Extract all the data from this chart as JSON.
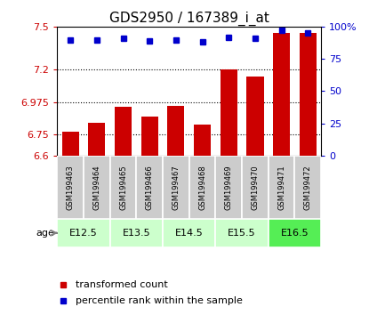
{
  "title": "GDS2950 / 167389_i_at",
  "samples": [
    "GSM199463",
    "GSM199464",
    "GSM199465",
    "GSM199466",
    "GSM199467",
    "GSM199468",
    "GSM199469",
    "GSM199470",
    "GSM199471",
    "GSM199472"
  ],
  "bar_values": [
    6.77,
    6.83,
    6.94,
    6.87,
    6.945,
    6.82,
    7.2,
    7.15,
    7.46,
    7.46
  ],
  "dot_values": [
    90,
    90,
    91,
    89,
    90,
    88,
    92,
    91,
    97,
    95
  ],
  "bar_base": 6.6,
  "ylim_left": [
    6.6,
    7.5
  ],
  "ylim_right": [
    0,
    100
  ],
  "yticks_left": [
    6.6,
    6.75,
    6.975,
    7.2,
    7.5
  ],
  "ytick_labels_left": [
    "6.6",
    "6.75",
    "6.975",
    "7.2",
    "7.5"
  ],
  "yticks_right": [
    0,
    25,
    50,
    75,
    100
  ],
  "ytick_labels_right": [
    "0",
    "25",
    "50",
    "75",
    "100%"
  ],
  "hlines": [
    6.75,
    6.975,
    7.2
  ],
  "bar_color": "#cc0000",
  "dot_color": "#0000cc",
  "age_groups": [
    {
      "label": "E12.5",
      "start": 0,
      "end": 1,
      "color": "#ccffcc"
    },
    {
      "label": "E13.5",
      "start": 2,
      "end": 3,
      "color": "#ccffcc"
    },
    {
      "label": "E14.5",
      "start": 4,
      "end": 5,
      "color": "#ccffcc"
    },
    {
      "label": "E15.5",
      "start": 6,
      "end": 7,
      "color": "#ccffcc"
    },
    {
      "label": "E16.5",
      "start": 8,
      "end": 9,
      "color": "#55ee55"
    }
  ],
  "legend_bar_label": "transformed count",
  "legend_dot_label": "percentile rank within the sample",
  "left_tick_color": "#cc0000",
  "right_tick_color": "#0000cc",
  "background_plot": "#ffffff",
  "sample_bg": "#cccccc",
  "age_label": "age",
  "title_fontsize": 11,
  "tick_fontsize": 8,
  "sample_fontsize": 6,
  "age_fontsize": 8,
  "legend_fontsize": 8
}
